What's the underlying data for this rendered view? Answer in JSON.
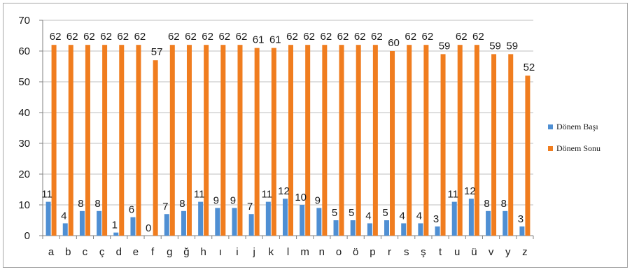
{
  "chart_data": {
    "type": "bar",
    "categories": [
      "a",
      "b",
      "c",
      "ç",
      "d",
      "e",
      "f",
      "g",
      "ğ",
      "h",
      "ı",
      "i",
      "j",
      "k",
      "l",
      "m",
      "n",
      "o",
      "ö",
      "p",
      "r",
      "s",
      "ş",
      "t",
      "u",
      "ü",
      "v",
      "y",
      "z"
    ],
    "series": [
      {
        "name": "Dönem Başı",
        "color": "#4f8fd3",
        "values": [
          11,
          4,
          8,
          8,
          1,
          6,
          0,
          7,
          8,
          11,
          9,
          9,
          7,
          11,
          12,
          10,
          9,
          5,
          5,
          4,
          5,
          4,
          4,
          3,
          11,
          12,
          8,
          8,
          3
        ]
      },
      {
        "name": "Dönem Sonu",
        "color": "#f07d1f",
        "values": [
          62,
          62,
          62,
          62,
          62,
          62,
          57,
          62,
          62,
          62,
          62,
          62,
          61,
          61,
          62,
          62,
          62,
          62,
          62,
          62,
          60,
          62,
          62,
          59,
          62,
          62,
          59,
          59,
          52
        ]
      }
    ],
    "ylim": [
      0,
      70
    ],
    "yticks": [
      0,
      10,
      20,
      30,
      40,
      50,
      60,
      70
    ],
    "grid": true,
    "legend_position": "right",
    "title": "",
    "xlabel": "",
    "ylabel": ""
  }
}
